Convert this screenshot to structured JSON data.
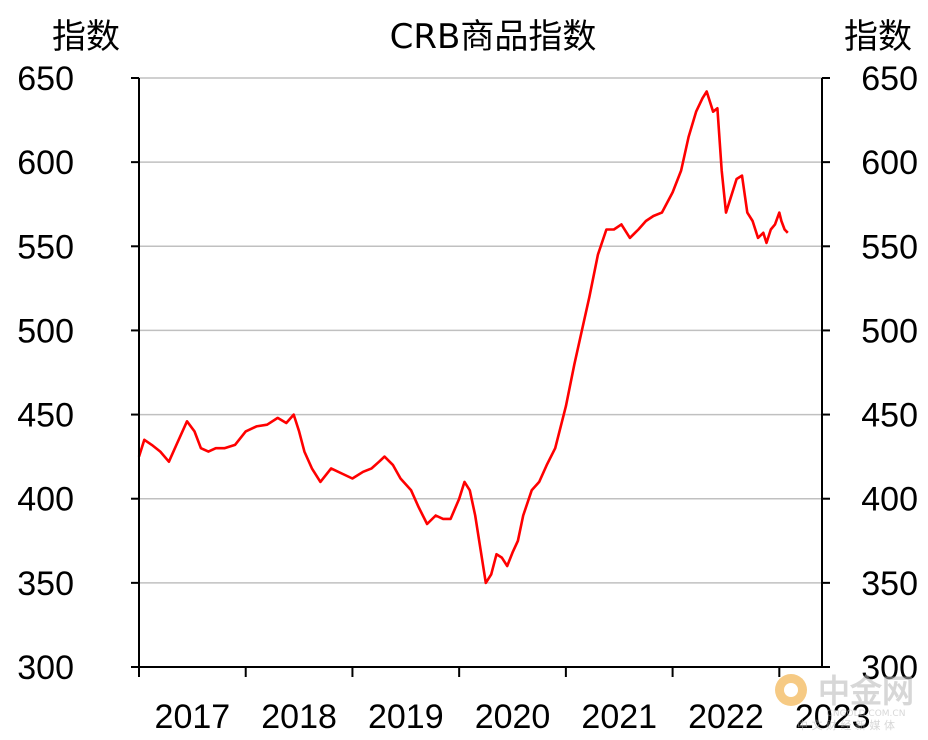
{
  "chart_data": {
    "type": "line",
    "title": "CRB商品指数",
    "ylabel_left": "指数",
    "ylabel_right": "指数",
    "xlabel": "",
    "ylim": [
      300,
      650
    ],
    "yticks": [
      300,
      350,
      400,
      450,
      500,
      550,
      600,
      650
    ],
    "xlim": [
      2017.0,
      2023.4
    ],
    "xticks": [
      "2017",
      "2018",
      "2019",
      "2020",
      "2021",
      "2022",
      "2023"
    ],
    "grid": true,
    "series": [
      {
        "color": "#ff0000",
        "x": [
          2017.0,
          2017.05,
          2017.12,
          2017.2,
          2017.28,
          2017.35,
          2017.45,
          2017.52,
          2017.58,
          2017.65,
          2017.72,
          2017.8,
          2017.9,
          2018.0,
          2018.1,
          2018.2,
          2018.3,
          2018.38,
          2018.45,
          2018.5,
          2018.55,
          2018.62,
          2018.7,
          2018.8,
          2018.9,
          2019.0,
          2019.1,
          2019.18,
          2019.25,
          2019.3,
          2019.38,
          2019.45,
          2019.55,
          2019.62,
          2019.7,
          2019.78,
          2019.85,
          2019.92,
          2020.0,
          2020.05,
          2020.1,
          2020.15,
          2020.2,
          2020.25,
          2020.3,
          2020.35,
          2020.4,
          2020.45,
          2020.5,
          2020.55,
          2020.6,
          2020.68,
          2020.75,
          2020.82,
          2020.9,
          2021.0,
          2021.08,
          2021.15,
          2021.22,
          2021.3,
          2021.38,
          2021.45,
          2021.52,
          2021.6,
          2021.68,
          2021.75,
          2021.82,
          2021.9,
          2022.0,
          2022.08,
          2022.15,
          2022.22,
          2022.28,
          2022.32,
          2022.38,
          2022.42,
          2022.46,
          2022.5,
          2022.55,
          2022.6,
          2022.65,
          2022.7,
          2022.75,
          2022.8,
          2022.85,
          2022.88,
          2022.92,
          2022.96,
          2023.0,
          2023.02,
          2023.05,
          2023.08
        ],
        "values": [
          425,
          435,
          432,
          428,
          422,
          432,
          446,
          440,
          430,
          428,
          430,
          430,
          432,
          440,
          443,
          444,
          448,
          445,
          450,
          440,
          428,
          418,
          410,
          418,
          415,
          412,
          416,
          418,
          422,
          425,
          420,
          412,
          405,
          395,
          385,
          390,
          388,
          388,
          400,
          410,
          405,
          390,
          370,
          350,
          355,
          367,
          365,
          360,
          368,
          375,
          390,
          405,
          410,
          420,
          430,
          455,
          480,
          500,
          520,
          545,
          560,
          560,
          563,
          555,
          560,
          565,
          568,
          570,
          582,
          595,
          615,
          630,
          638,
          642,
          630,
          632,
          595,
          570,
          580,
          590,
          592,
          570,
          565,
          555,
          558,
          552,
          560,
          563,
          570,
          565,
          560,
          558
        ]
      }
    ]
  },
  "watermark": {
    "cn_text": "中金网",
    "url_text": "CNGOLD.COM.CN",
    "sub_text": "中 文 财 经 新 媒 体",
    "colors": {
      "logo": "#f0a020",
      "text": "#b8b8b8"
    }
  }
}
